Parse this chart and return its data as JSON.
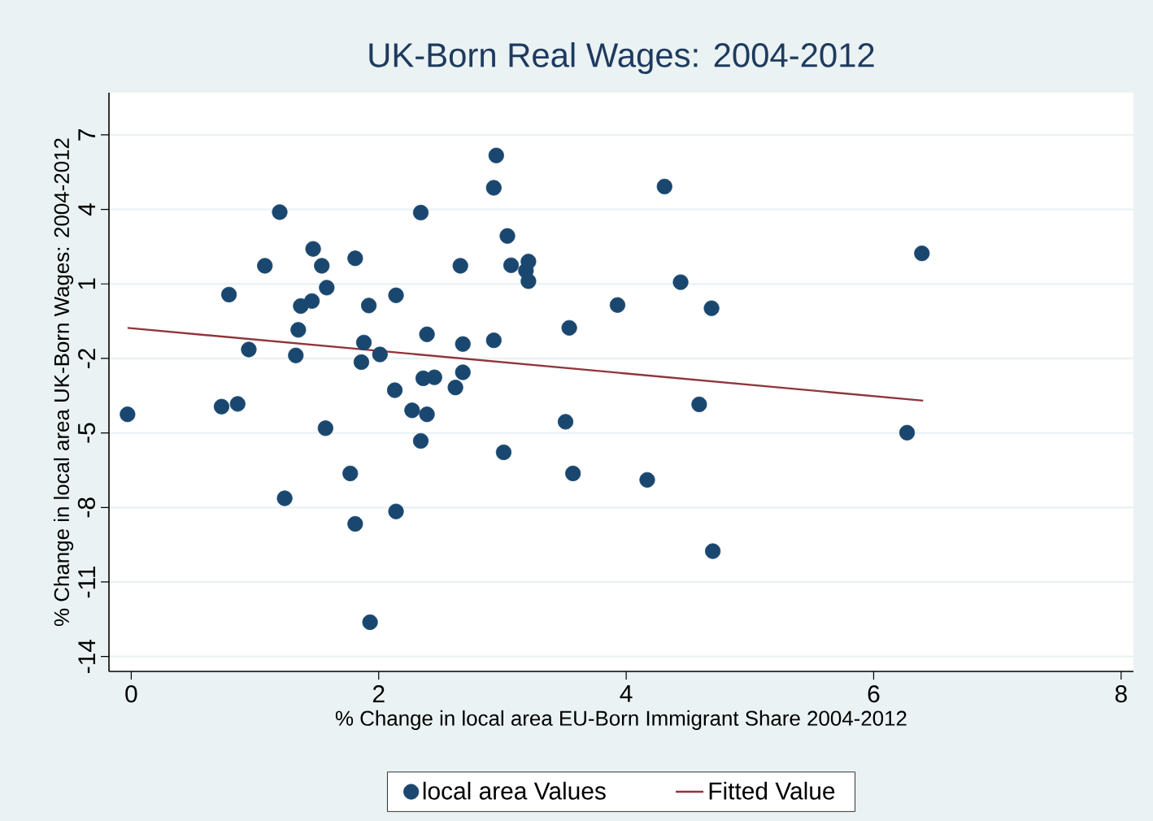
{
  "chart_data": {
    "type": "scatter",
    "title": "UK-Born Real Wages: 2004-2012",
    "xlabel": "% Change in local area EU-Born Immigrant Share 2004-2012",
    "ylabel": "% Change in local area UK-Born Wages: 2004-2012",
    "xlim": [
      -0.18,
      8.1
    ],
    "ylim": [
      -14.6,
      8.7
    ],
    "xticks": [
      0,
      2,
      4,
      6,
      8
    ],
    "yticks": [
      -14,
      -11,
      -8,
      -5,
      -2,
      1,
      4,
      7
    ],
    "grid": "y",
    "legend": "bottom",
    "series": [
      {
        "name": "local area Values",
        "type": "scatter",
        "marker": "circle",
        "color": "#1a476f",
        "x": [
          -0.03,
          0.73,
          0.86,
          0.79,
          0.95,
          1.08,
          1.2,
          1.33,
          1.35,
          1.37,
          1.46,
          1.47,
          1.54,
          1.58,
          1.57,
          1.81,
          1.88,
          1.86,
          1.92,
          2.01,
          2.14,
          2.13,
          2.27,
          2.34,
          2.36,
          2.45,
          2.39,
          2.39,
          2.34,
          2.62,
          2.68,
          2.68,
          2.66,
          2.93,
          2.93,
          2.95,
          3.04,
          3.07,
          3.01,
          3.21,
          3.19,
          3.21,
          3.54,
          3.51,
          3.93,
          4.31,
          4.44,
          4.69,
          4.59,
          6.39,
          6.27,
          1.24,
          1.77,
          1.81,
          1.93,
          2.14,
          3.57,
          4.17,
          4.7
        ],
        "values": [
          -4.25,
          -3.94,
          -3.83,
          0.57,
          -1.64,
          1.73,
          3.89,
          -1.88,
          -0.85,
          0.11,
          0.31,
          2.41,
          1.73,
          0.85,
          -4.81,
          2.03,
          -1.36,
          -2.15,
          0.13,
          -1.84,
          0.54,
          -3.28,
          -4.09,
          3.87,
          -2.8,
          -2.76,
          -1.03,
          -4.25,
          -5.32,
          -3.17,
          -2.56,
          -1.42,
          1.73,
          -1.27,
          4.87,
          6.17,
          2.93,
          1.75,
          -5.78,
          1.9,
          1.53,
          1.11,
          -0.77,
          -4.55,
          0.15,
          4.92,
          1.07,
          0.02,
          -3.85,
          2.23,
          -4.99,
          -7.63,
          -6.63,
          -8.66,
          -12.62,
          -8.16,
          -6.63,
          -6.89,
          -9.76
        ]
      },
      {
        "name": "Fitted Value",
        "type": "line",
        "marker": "none",
        "color": "#90353b",
        "x": [
          -0.03,
          6.4
        ],
        "values": [
          -0.77,
          -3.7
        ]
      }
    ]
  }
}
